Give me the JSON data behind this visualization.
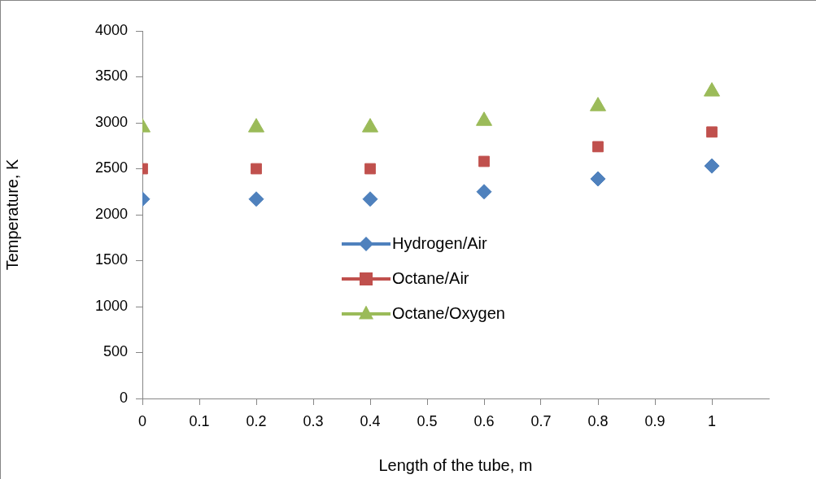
{
  "chart_data": {
    "type": "scatter",
    "xlabel": "Length of the tube, m",
    "ylabel": "Temperature, K",
    "x": [
      0,
      0.2,
      0.4,
      0.6,
      0.8,
      1
    ],
    "series": [
      {
        "name": "Hydrogen/Air",
        "color": "#4f81bd",
        "marker": "diamond",
        "values": [
          2170,
          2170,
          2170,
          2250,
          2390,
          2530
        ]
      },
      {
        "name": "Octane/Air",
        "color": "#c0504d",
        "marker": "square",
        "values": [
          2500,
          2500,
          2500,
          2580,
          2740,
          2900
        ]
      },
      {
        "name": "Octane/Oxygen",
        "color": "#9bbb59",
        "marker": "triangle",
        "values": [
          2950,
          2950,
          2950,
          3020,
          3180,
          3340
        ]
      }
    ],
    "xlim": [
      0,
      1.1
    ],
    "xticks": [
      0,
      0.1,
      0.2,
      0.3,
      0.4,
      0.5,
      0.6,
      0.7,
      0.8,
      0.9,
      1
    ],
    "ylim": [
      0,
      4000
    ],
    "yticks": [
      0,
      500,
      1000,
      1500,
      2000,
      2500,
      3000,
      3500,
      4000
    ],
    "grid": false,
    "legend": "center"
  }
}
